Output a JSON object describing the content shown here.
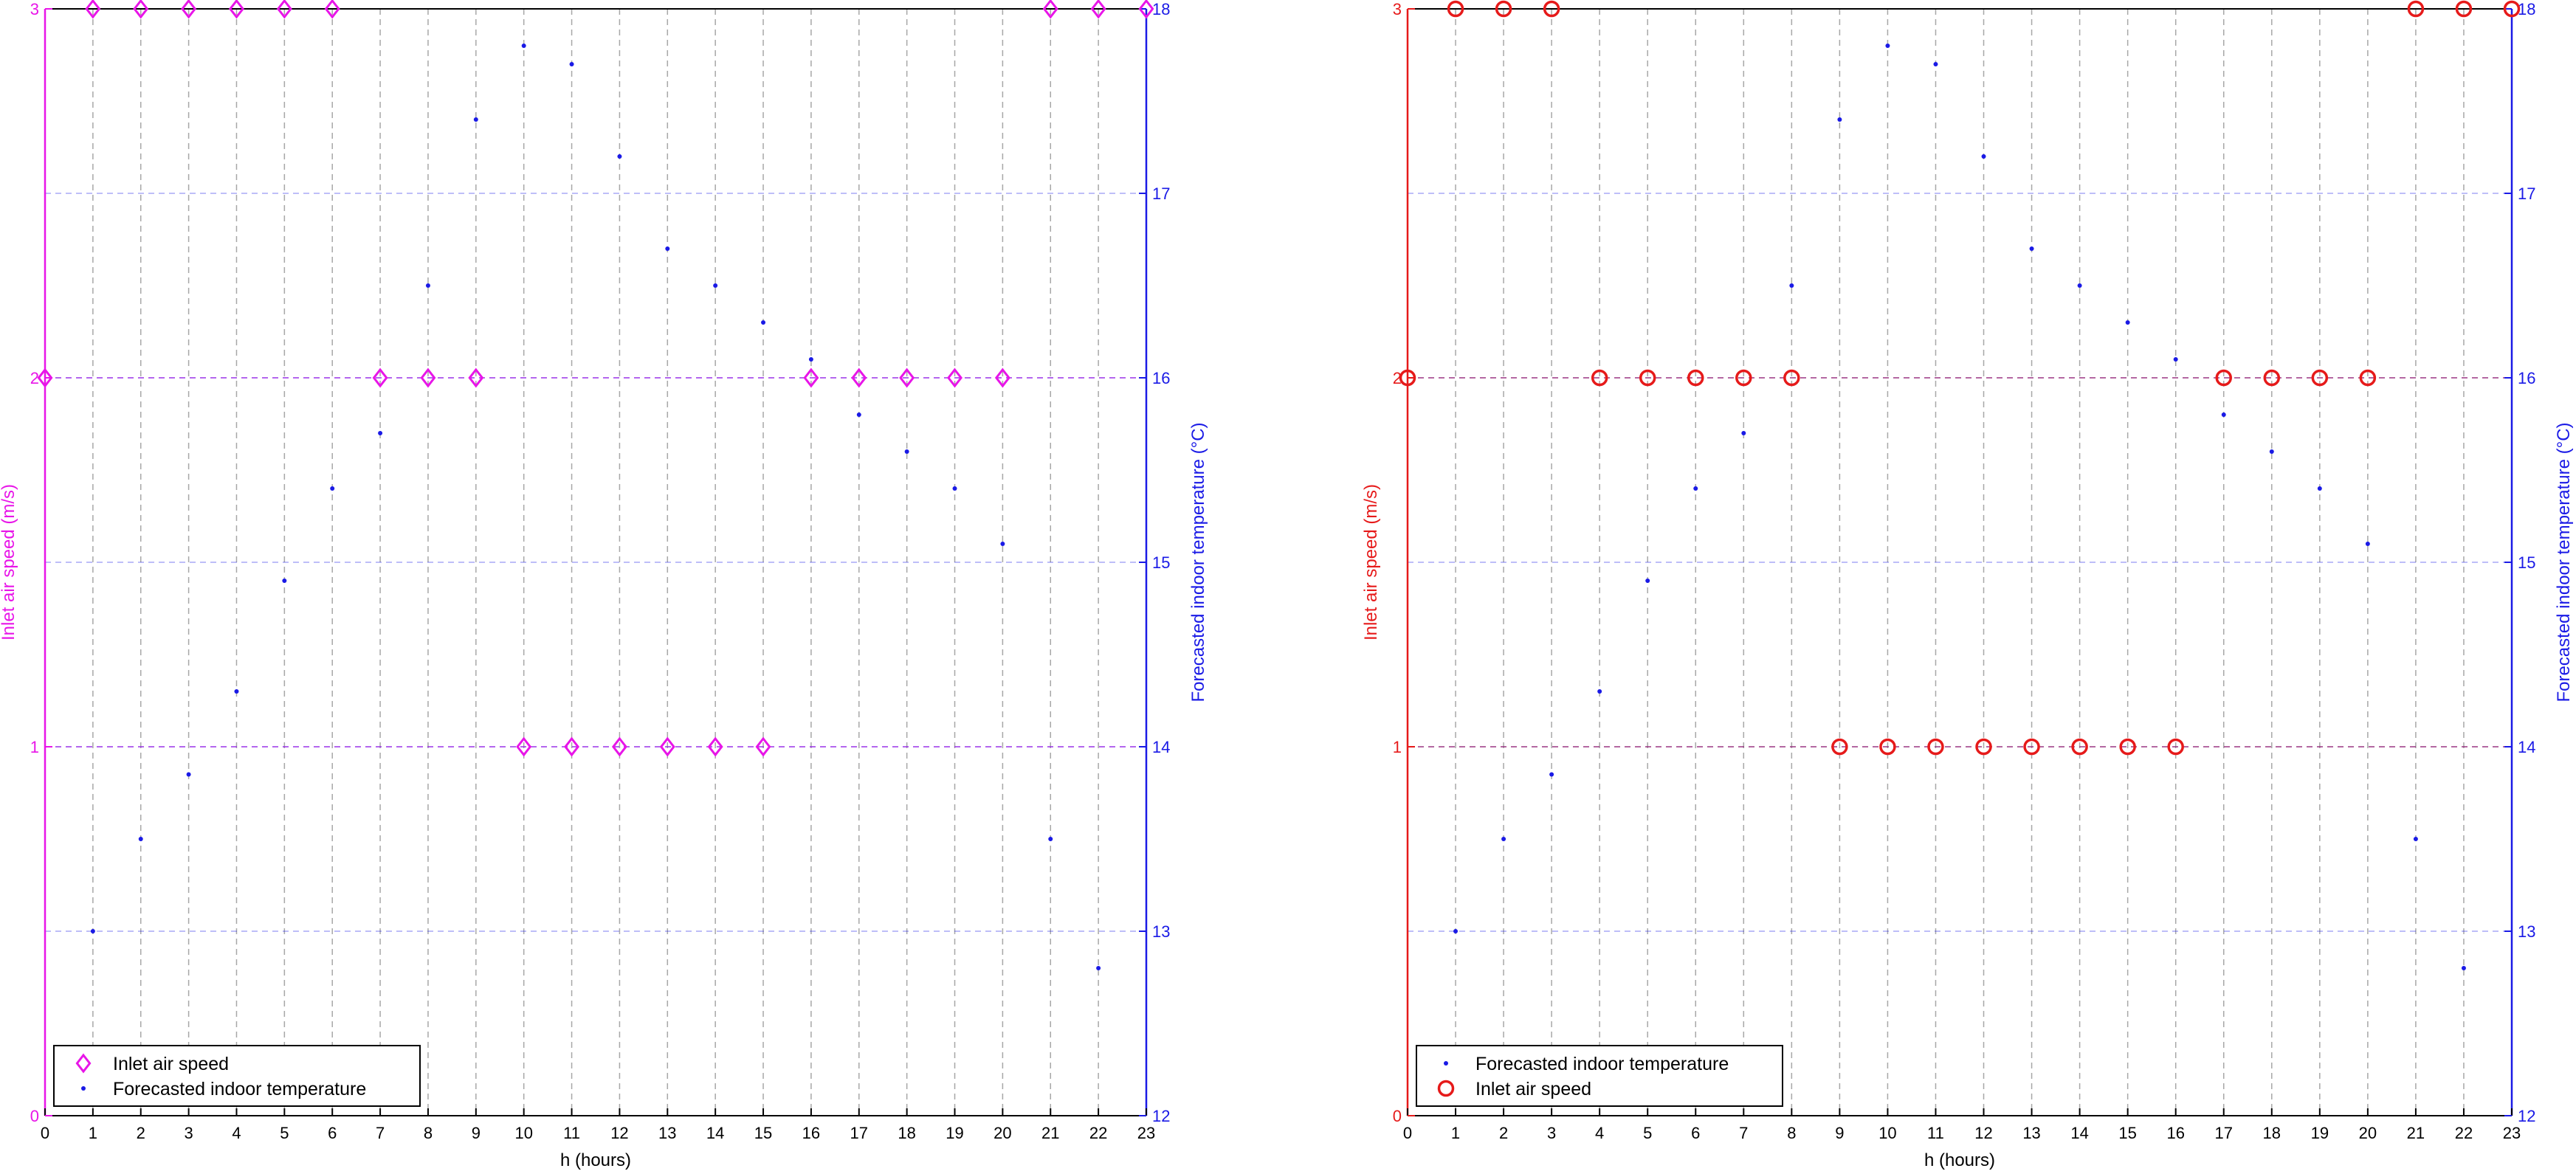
{
  "chart_data": [
    {
      "type": "scatter",
      "title": "",
      "xlabel": "h (hours)",
      "ylabel_left": "Inlet air speed (m/s)",
      "ylabel_right": "Forecasted indoor temperature (°C)",
      "x_ticks": [
        0,
        1,
        2,
        3,
        4,
        5,
        6,
        7,
        8,
        9,
        10,
        11,
        12,
        13,
        14,
        15,
        16,
        17,
        18,
        19,
        20,
        21,
        22,
        23
      ],
      "xlim": [
        0,
        23
      ],
      "ylim_left": [
        0,
        3
      ],
      "yticks_left": [
        0,
        1,
        2,
        3
      ],
      "ylim_right": [
        12,
        18
      ],
      "yticks_right": [
        12,
        13,
        14,
        15,
        16,
        17,
        18
      ],
      "grid": true,
      "legend_placement": "bottom-left",
      "left_color": "#e815e8",
      "right_color": "#1a1ae6",
      "series": [
        {
          "name": "Inlet air speed",
          "axis": "left",
          "marker": "diamond",
          "color": "#e815e8",
          "x": [
            0,
            1,
            2,
            3,
            4,
            5,
            6,
            7,
            8,
            9,
            10,
            11,
            12,
            13,
            14,
            15,
            16,
            17,
            18,
            19,
            20,
            21,
            22,
            23
          ],
          "values": [
            2,
            3,
            3,
            3,
            3,
            3,
            3,
            2,
            2,
            2,
            1,
            1,
            1,
            1,
            1,
            1,
            2,
            2,
            2,
            2,
            2,
            3,
            3,
            3
          ]
        },
        {
          "name": "Forecasted indoor temperature",
          "axis": "right",
          "marker": "dot",
          "color": "#1a1ae6",
          "x": [
            1,
            2,
            3,
            4,
            5,
            6,
            7,
            8,
            9,
            10,
            11,
            12,
            13,
            14,
            15,
            16,
            17,
            18,
            19,
            20,
            21,
            22
          ],
          "values": [
            13.0,
            13.5,
            13.85,
            14.3,
            14.9,
            15.4,
            15.7,
            16.5,
            17.4,
            17.8,
            17.7,
            17.2,
            16.7,
            16.5,
            16.3,
            16.1,
            15.8,
            15.6,
            15.4,
            15.1,
            13.5,
            12.8
          ]
        }
      ]
    },
    {
      "type": "scatter",
      "title": "",
      "xlabel": "h (hours)",
      "ylabel_left": "Inlet air speed (m/s)",
      "ylabel_right": "Forecasted indoor temperature (°C)",
      "x_ticks": [
        0,
        1,
        2,
        3,
        4,
        5,
        6,
        7,
        8,
        9,
        10,
        11,
        12,
        13,
        14,
        15,
        16,
        17,
        18,
        19,
        20,
        21,
        22,
        23
      ],
      "xlim": [
        0,
        23
      ],
      "ylim_left": [
        0,
        3
      ],
      "yticks_left": [
        0,
        1,
        2,
        3
      ],
      "ylim_right": [
        12,
        18
      ],
      "yticks_right": [
        12,
        13,
        14,
        15,
        16,
        17,
        18
      ],
      "grid": true,
      "legend_placement": "bottom-left",
      "left_color": "#e61a1a",
      "right_color": "#1a1ae6",
      "series": [
        {
          "name": "Forecasted indoor temperature",
          "axis": "right",
          "marker": "dot",
          "color": "#1a1ae6",
          "x": [
            1,
            2,
            3,
            4,
            5,
            6,
            7,
            8,
            9,
            10,
            11,
            12,
            13,
            14,
            15,
            16,
            17,
            18,
            19,
            20,
            21,
            22
          ],
          "values": [
            13.0,
            13.5,
            13.85,
            14.3,
            14.9,
            15.4,
            15.7,
            16.5,
            17.4,
            17.8,
            17.7,
            17.2,
            16.7,
            16.5,
            16.3,
            16.1,
            15.8,
            15.6,
            15.4,
            15.1,
            13.5,
            12.8
          ]
        },
        {
          "name": "Inlet air speed",
          "axis": "left",
          "marker": "circle",
          "color": "#e61a1a",
          "x": [
            0,
            1,
            2,
            3,
            4,
            5,
            6,
            7,
            8,
            9,
            10,
            11,
            12,
            13,
            14,
            15,
            16,
            17,
            18,
            19,
            20,
            21,
            22,
            23
          ],
          "values": [
            2,
            3,
            3,
            3,
            2,
            2,
            2,
            2,
            2,
            1,
            1,
            1,
            1,
            1,
            1,
            1,
            1,
            2,
            2,
            2,
            2,
            3,
            3,
            3
          ]
        }
      ]
    }
  ]
}
